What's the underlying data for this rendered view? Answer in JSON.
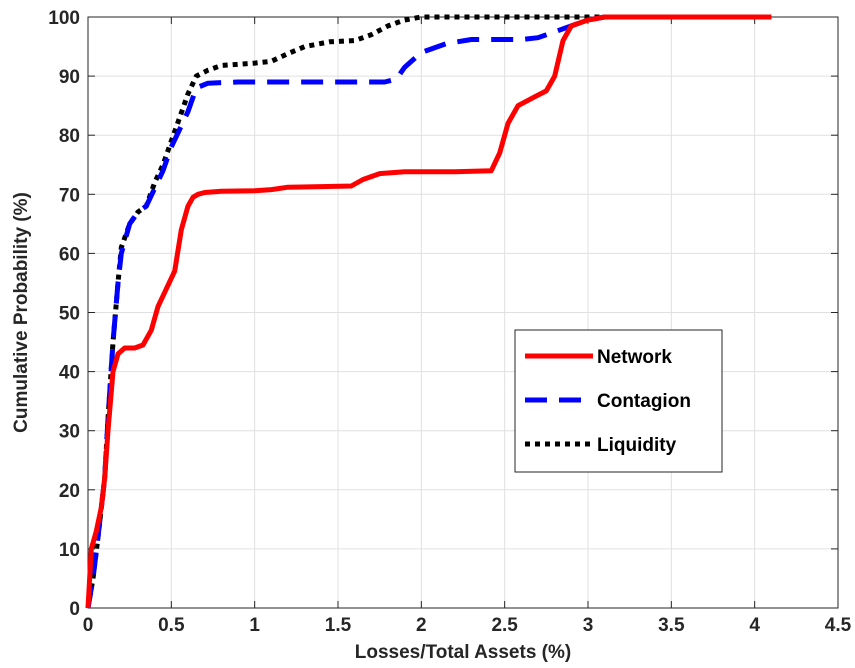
{
  "chart_data": {
    "type": "line",
    "xlabel": "Losses/Total Assets (%)",
    "ylabel": "Cumulative Probability (%)",
    "xlim": [
      0,
      4.5
    ],
    "ylim": [
      0,
      100
    ],
    "xticks": [
      "0",
      "0.5",
      "1",
      "1.5",
      "2",
      "2.5",
      "3",
      "3.5",
      "4",
      "4.5"
    ],
    "yticks": [
      "0",
      "10",
      "20",
      "30",
      "40",
      "50",
      "60",
      "70",
      "80",
      "90",
      "100"
    ],
    "grid": true,
    "legend_position": "right",
    "series": [
      {
        "name": "Network",
        "color": "#ff0000",
        "style": "solid",
        "x": [
          0,
          0.02,
          0.05,
          0.08,
          0.1,
          0.12,
          0.15,
          0.18,
          0.22,
          0.28,
          0.33,
          0.38,
          0.42,
          0.47,
          0.52,
          0.56,
          0.6,
          0.63,
          0.66,
          0.7,
          0.8,
          1.0,
          1.1,
          1.2,
          1.4,
          1.58,
          1.65,
          1.75,
          1.9,
          2.2,
          2.42,
          2.47,
          2.52,
          2.58,
          2.68,
          2.75,
          2.8,
          2.85,
          2.9,
          3.0,
          3.1,
          3.2,
          3.6,
          4.1
        ],
        "y": [
          0,
          10,
          13,
          17,
          22,
          30,
          40,
          43,
          44,
          44,
          44.5,
          47,
          51,
          54,
          57,
          64,
          68,
          69.5,
          70,
          70.3,
          70.5,
          70.6,
          70.8,
          71.2,
          71.3,
          71.4,
          72.5,
          73.5,
          73.8,
          73.8,
          74,
          77,
          82,
          85,
          86.5,
          87.5,
          90,
          96,
          98.5,
          99.5,
          100,
          100,
          100,
          100
        ]
      },
      {
        "name": "Contagion",
        "color": "#0000ff",
        "style": "dashed",
        "x": [
          0,
          0.03,
          0.06,
          0.1,
          0.12,
          0.15,
          0.18,
          0.2,
          0.25,
          0.3,
          0.35,
          0.4,
          0.45,
          0.5,
          0.55,
          0.6,
          0.65,
          0.72,
          0.9,
          1.2,
          1.5,
          1.78,
          1.85,
          1.9,
          2.0,
          2.15,
          2.3,
          2.6,
          2.7,
          2.8,
          2.9,
          3.0,
          3.1,
          3.3,
          3.7,
          4.1
        ],
        "y": [
          0,
          5,
          12,
          22,
          32,
          45,
          55,
          60,
          65,
          67,
          68,
          71,
          74,
          78,
          81,
          84,
          88,
          88.8,
          89,
          89,
          89,
          89,
          89.5,
          91.5,
          94,
          95.5,
          96.2,
          96.2,
          96.5,
          97.5,
          98.5,
          99.5,
          100,
          100,
          100,
          100
        ]
      },
      {
        "name": "Liquidity",
        "color": "#000000",
        "style": "dotted",
        "x": [
          0,
          0.03,
          0.06,
          0.1,
          0.12,
          0.15,
          0.18,
          0.2,
          0.25,
          0.3,
          0.35,
          0.4,
          0.45,
          0.5,
          0.55,
          0.6,
          0.65,
          0.72,
          0.8,
          0.9,
          1.0,
          1.1,
          1.2,
          1.3,
          1.45,
          1.6,
          1.7,
          1.8,
          1.9,
          2.0,
          2.2,
          2.6,
          3.0,
          3.1
        ],
        "y": [
          0,
          5,
          12,
          22,
          32,
          45,
          55,
          61,
          65,
          67,
          68,
          72,
          75,
          79,
          83,
          87,
          90,
          91,
          91.8,
          92,
          92.2,
          92.5,
          93.8,
          95,
          95.8,
          96,
          97,
          98.5,
          99.5,
          100,
          100,
          100,
          100,
          100
        ]
      }
    ]
  }
}
